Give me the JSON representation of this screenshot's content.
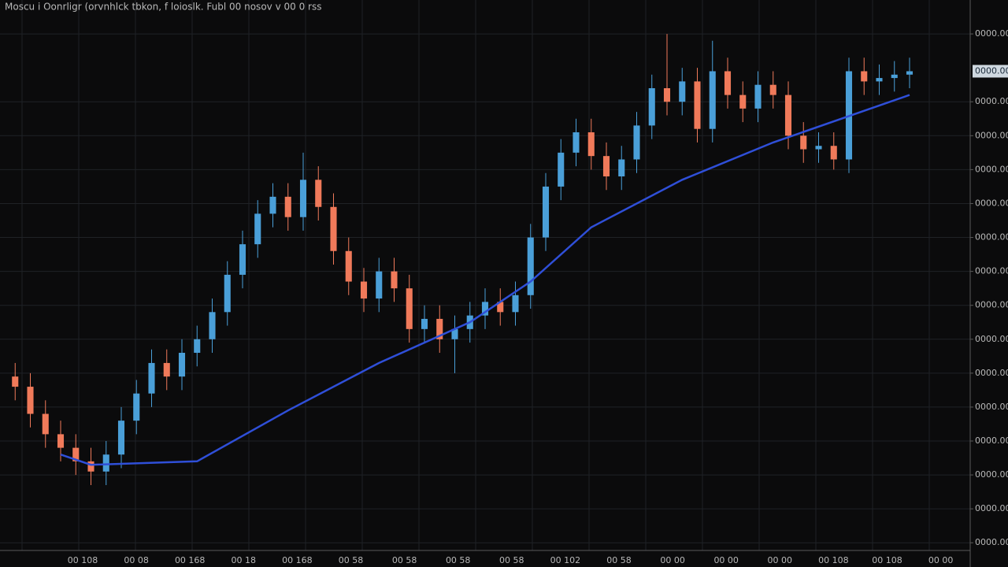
{
  "chart_data": {
    "type": "candlestick",
    "title": "Moscu i Oonrligr (orvnhlck tbkon, f loioslk. Fubl 00 nosov v 00 0 rss",
    "x_labels": [
      "00 108",
      "00 08",
      "00 168",
      "00 18",
      "00 168",
      "00 58",
      "00 58",
      "00 58",
      "00 58",
      "00 102",
      "00 58",
      "00 00",
      "00 00",
      "00 00",
      "00 108",
      "00 108",
      "00 00"
    ],
    "xlim": [
      -1,
      63
    ],
    "ylim": [
      -0.25,
      16
    ],
    "yticks": [
      {
        "value": 0,
        "label": "0000.00"
      },
      {
        "value": 1,
        "label": "0000.00"
      },
      {
        "value": 2,
        "label": "0000.00"
      },
      {
        "value": 3,
        "label": "0000.00"
      },
      {
        "value": 4,
        "label": "0000.00"
      },
      {
        "value": 5,
        "label": "0000.00"
      },
      {
        "value": 6,
        "label": "0000.00"
      },
      {
        "value": 7,
        "label": "0000.00"
      },
      {
        "value": 8,
        "label": "0000.00"
      },
      {
        "value": 9,
        "label": "0000.00"
      },
      {
        "value": 10,
        "label": "0000.00"
      },
      {
        "value": 11,
        "label": "0000.00"
      },
      {
        "value": 12,
        "label": "0000.00"
      },
      {
        "value": 13,
        "label": "0000.00"
      },
      {
        "value": 15,
        "label": "0000.00"
      }
    ],
    "last_price": {
      "value": 13.9,
      "label": "0000.00"
    },
    "grid": true,
    "up_color": "#4a9fd8",
    "down_color": "#f07a5a",
    "open": [
      4.9,
      4.6,
      3.8,
      3.2,
      2.8,
      2.4,
      2.1,
      2.6,
      3.6,
      4.4,
      5.3,
      4.9,
      5.6,
      6.0,
      6.8,
      7.9,
      8.8,
      9.7,
      10.2,
      9.6,
      10.7,
      9.9,
      8.6,
      7.7,
      7.2,
      8.0,
      7.5,
      6.3,
      6.6,
      6.0,
      6.3,
      6.7,
      7.1,
      6.8,
      7.3,
      9.0,
      10.5,
      11.5,
      12.1,
      11.4,
      10.8,
      11.3,
      12.3,
      13.4,
      13.0,
      13.6,
      12.2,
      13.9,
      13.2,
      12.8,
      13.5,
      13.2,
      12.0,
      11.6,
      11.7,
      11.3,
      13.9,
      13.6,
      13.7,
      13.8
    ],
    "close": [
      4.6,
      3.8,
      3.2,
      2.8,
      2.4,
      2.1,
      2.6,
      3.6,
      4.4,
      5.3,
      4.9,
      5.6,
      6.0,
      6.8,
      7.9,
      8.8,
      9.7,
      10.2,
      9.6,
      10.7,
      9.9,
      8.6,
      7.7,
      7.2,
      8.0,
      7.5,
      6.3,
      6.6,
      6.0,
      6.3,
      6.7,
      7.1,
      6.8,
      7.3,
      9.0,
      10.5,
      11.5,
      12.1,
      11.4,
      10.8,
      11.3,
      12.3,
      13.4,
      13.0,
      13.6,
      12.2,
      13.9,
      13.2,
      12.8,
      13.5,
      13.2,
      12.0,
      11.6,
      11.7,
      11.3,
      13.9,
      13.6,
      13.7,
      13.8,
      13.9
    ],
    "high": [
      5.3,
      5.0,
      4.2,
      3.6,
      3.2,
      2.8,
      3.0,
      4.0,
      4.8,
      5.7,
      5.7,
      6.0,
      6.4,
      7.2,
      8.3,
      9.2,
      10.1,
      10.6,
      10.6,
      11.5,
      11.1,
      10.3,
      9.0,
      8.1,
      8.4,
      8.4,
      7.9,
      7.0,
      7.0,
      6.7,
      7.1,
      7.5,
      7.5,
      7.7,
      9.4,
      10.9,
      11.9,
      12.5,
      12.5,
      11.8,
      11.7,
      12.7,
      13.8,
      15.0,
      14.0,
      14.0,
      14.8,
      14.3,
      13.6,
      13.9,
      13.9,
      13.6,
      12.4,
      12.1,
      12.1,
      14.3,
      14.3,
      14.1,
      14.2,
      14.3
    ],
    "low": [
      4.2,
      3.4,
      2.8,
      2.4,
      2.0,
      1.7,
      1.7,
      2.2,
      3.2,
      4.0,
      4.5,
      4.5,
      5.2,
      5.6,
      6.4,
      7.5,
      8.4,
      9.3,
      9.2,
      9.2,
      9.5,
      8.2,
      7.3,
      6.8,
      6.8,
      7.1,
      5.9,
      5.9,
      5.6,
      5.0,
      5.9,
      6.3,
      6.4,
      6.4,
      6.9,
      8.6,
      10.1,
      11.1,
      11.0,
      10.4,
      10.4,
      10.9,
      11.9,
      12.6,
      12.6,
      11.8,
      11.8,
      12.8,
      12.4,
      12.4,
      12.8,
      11.6,
      11.2,
      11.2,
      11.0,
      10.9,
      13.2,
      13.2,
      13.3,
      13.4
    ],
    "moving_average": {
      "color": "#2f4fd8",
      "x": [
        3,
        5,
        12,
        18,
        24,
        30,
        34,
        38,
        44,
        50,
        59
      ],
      "values": [
        2.6,
        2.3,
        2.4,
        3.9,
        5.3,
        6.5,
        7.7,
        9.3,
        10.7,
        11.8,
        13.2
      ]
    }
  }
}
